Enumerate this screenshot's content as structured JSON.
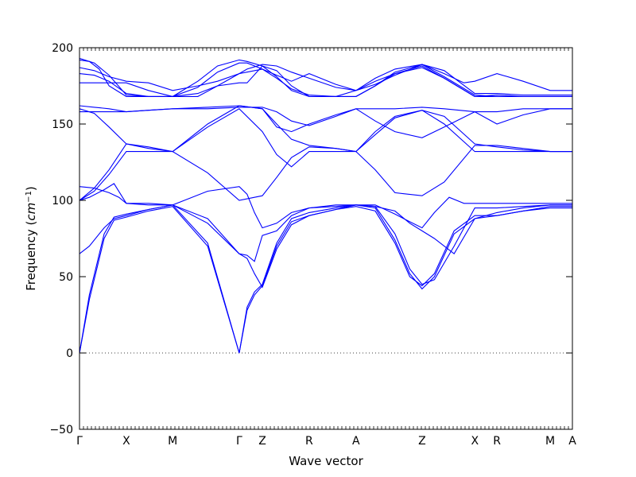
{
  "chart_data": {
    "type": "line",
    "xlabel": "Wave vector",
    "ylabel": "Frequency",
    "ylabel_unit": "cm",
    "ylabel_unit_exp": "−1",
    "ylim": [
      -50,
      200
    ],
    "yticks": [
      -50,
      0,
      50,
      100,
      150,
      200
    ],
    "xlim": [
      0,
      1
    ],
    "grid": false,
    "zero_line": "dotted",
    "high_symmetry_points": [
      {
        "label": "Γ",
        "x": 0.0
      },
      {
        "label": "X",
        "x": 0.095
      },
      {
        "label": "M",
        "x": 0.189
      },
      {
        "label": "Γ",
        "x": 0.324
      },
      {
        "label": "Z",
        "x": 0.371
      },
      {
        "label": "R",
        "x": 0.466
      },
      {
        "label": "A",
        "x": 0.561
      },
      {
        "label": "Z",
        "x": 0.695
      },
      {
        "label": "X",
        "x": 0.802
      },
      {
        "label": "R",
        "x": 0.847
      },
      {
        "label": "M",
        "x": 0.955
      },
      {
        "label": "A",
        "x": 1.0
      }
    ],
    "series": [
      {
        "x": [
          0,
          0.02,
          0.05,
          0.07,
          0.095,
          0.14,
          0.189,
          0.26,
          0.324,
          0.34,
          0.355,
          0.371,
          0.4,
          0.43,
          0.466,
          0.52,
          0.561,
          0.6,
          0.64,
          0.67,
          0.695,
          0.72,
          0.76,
          0.802,
          0.847,
          0.9,
          0.955,
          1.0
        ],
        "y": [
          0,
          35,
          75,
          87,
          89,
          93,
          96,
          70,
          0,
          28,
          38,
          44,
          70,
          86,
          90,
          94,
          96,
          93,
          72,
          50,
          44,
          52,
          80,
          90,
          90,
          93,
          96,
          96
        ]
      },
      {
        "x": [
          0,
          0.02,
          0.05,
          0.07,
          0.095,
          0.14,
          0.189,
          0.26,
          0.324,
          0.34,
          0.355,
          0.371,
          0.4,
          0.43,
          0.466,
          0.52,
          0.561,
          0.6,
          0.64,
          0.67,
          0.695,
          0.72,
          0.76,
          0.802,
          0.847,
          0.9,
          0.955,
          1.0
        ],
        "y": [
          0,
          38,
          78,
          89,
          91,
          94,
          97,
          72,
          0,
          30,
          40,
          45,
          72,
          88,
          92,
          95,
          97,
          95,
          74,
          52,
          42,
          50,
          78,
          88,
          92,
          95,
          97,
          97
        ]
      },
      {
        "x": [
          0,
          0.02,
          0.05,
          0.07,
          0.095,
          0.14,
          0.189,
          0.26,
          0.324,
          0.34,
          0.355,
          0.371,
          0.4,
          0.43,
          0.466,
          0.52,
          0.561,
          0.6,
          0.64,
          0.67,
          0.695,
          0.72,
          0.76,
          0.802,
          0.847,
          0.9,
          0.955,
          1.0
        ],
        "y": [
          65,
          70,
          82,
          88,
          90,
          94,
          97,
          88,
          65,
          62,
          52,
          43,
          68,
          84,
          90,
          94,
          97,
          96,
          78,
          55,
          45,
          48,
          70,
          95,
          95,
          96,
          97,
          97
        ]
      },
      {
        "x": [
          0,
          0.03,
          0.06,
          0.08,
          0.095,
          0.14,
          0.189,
          0.26,
          0.324,
          0.34,
          0.355,
          0.371,
          0.4,
          0.43,
          0.466,
          0.52,
          0.561,
          0.6,
          0.64,
          0.67,
          0.695,
          0.72,
          0.75,
          0.78,
          0.802,
          0.847,
          0.9,
          0.955,
          1.0
        ],
        "y": [
          109,
          108,
          105,
          102,
          98,
          98,
          97,
          85,
          65,
          64,
          60,
          77,
          80,
          90,
          95,
          97,
          97,
          97,
          91,
          86,
          82,
          92,
          102,
          98,
          98,
          98,
          98,
          98,
          98
        ]
      },
      {
        "x": [
          0,
          0.02,
          0.05,
          0.07,
          0.095,
          0.14,
          0.189,
          0.26,
          0.324,
          0.34,
          0.355,
          0.371,
          0.4,
          0.43,
          0.466,
          0.52,
          0.561,
          0.6,
          0.64,
          0.67,
          0.695,
          0.72,
          0.76,
          0.802,
          0.847,
          0.9,
          0.955,
          1.0
        ],
        "y": [
          100,
          102,
          107,
          111,
          98,
          97,
          97,
          106,
          109,
          104,
          92,
          82,
          85,
          92,
          95,
          96,
          97,
          96,
          93,
          85,
          80,
          75,
          65,
          88,
          90,
          93,
          95,
          95
        ]
      },
      {
        "x": [
          0,
          0.03,
          0.06,
          0.095,
          0.14,
          0.189,
          0.26,
          0.324,
          0.371,
          0.4,
          0.43,
          0.466,
          0.52,
          0.561,
          0.6,
          0.64,
          0.695,
          0.74,
          0.802,
          0.847,
          0.9,
          0.955,
          1.0
        ],
        "y": [
          100,
          108,
          120,
          137,
          135,
          132,
          118,
          100,
          103,
          115,
          128,
          135,
          134,
          132,
          120,
          105,
          103,
          112,
          136,
          136,
          134,
          132,
          132
        ]
      },
      {
        "x": [
          0,
          0.03,
          0.06,
          0.095,
          0.14,
          0.189,
          0.26,
          0.324,
          0.371,
          0.4,
          0.43,
          0.466,
          0.52,
          0.561,
          0.6,
          0.64,
          0.695,
          0.74,
          0.802,
          0.847,
          0.9,
          0.955,
          1.0
        ],
        "y": [
          100,
          106,
          117,
          132,
          132,
          132,
          148,
          160,
          145,
          130,
          122,
          132,
          132,
          132,
          145,
          155,
          159,
          150,
          132,
          132,
          132,
          132,
          132
        ]
      },
      {
        "x": [
          0,
          0.03,
          0.06,
          0.095,
          0.14,
          0.189,
          0.26,
          0.324,
          0.371,
          0.4,
          0.43,
          0.466,
          0.52,
          0.561,
          0.6,
          0.64,
          0.695,
          0.74,
          0.802,
          0.847,
          0.9,
          0.955,
          1.0
        ],
        "y": [
          160,
          157,
          148,
          137,
          134,
          132,
          150,
          162,
          160,
          150,
          140,
          136,
          134,
          132,
          143,
          154,
          159,
          155,
          137,
          135,
          133,
          132,
          132
        ]
      },
      {
        "x": [
          0,
          0.03,
          0.06,
          0.095,
          0.14,
          0.189,
          0.26,
          0.324,
          0.371,
          0.4,
          0.43,
          0.466,
          0.52,
          0.561,
          0.6,
          0.64,
          0.695,
          0.74,
          0.802,
          0.847,
          0.9,
          0.955,
          1.0
        ],
        "y": [
          162,
          161,
          160,
          158,
          159,
          160,
          161,
          162,
          160,
          148,
          145,
          150,
          156,
          160,
          152,
          145,
          141,
          148,
          158,
          150,
          156,
          160,
          160
        ]
      },
      {
        "x": [
          0,
          0.03,
          0.06,
          0.095,
          0.14,
          0.189,
          0.26,
          0.324,
          0.371,
          0.4,
          0.43,
          0.466,
          0.52,
          0.561,
          0.6,
          0.64,
          0.695,
          0.74,
          0.802,
          0.847,
          0.9,
          0.955,
          1.0
        ],
        "y": [
          158,
          158,
          158,
          158,
          159,
          160,
          160,
          161,
          161,
          158,
          152,
          149,
          155,
          160,
          160,
          160,
          161,
          160,
          158,
          158,
          160,
          160,
          160
        ]
      },
      {
        "x": [
          0,
          0.03,
          0.06,
          0.095,
          0.14,
          0.189,
          0.24,
          0.28,
          0.324,
          0.34,
          0.371,
          0.4,
          0.43,
          0.466,
          0.52,
          0.561,
          0.6,
          0.64,
          0.695,
          0.74,
          0.802,
          0.847,
          0.9,
          0.955,
          1.0
        ],
        "y": [
          177,
          177,
          177,
          177,
          172,
          168,
          168,
          175,
          177,
          177,
          188,
          185,
          175,
          168,
          168,
          168,
          175,
          183,
          188,
          180,
          168,
          169,
          168,
          168,
          168
        ]
      },
      {
        "x": [
          0,
          0.03,
          0.06,
          0.095,
          0.14,
          0.189,
          0.24,
          0.28,
          0.324,
          0.34,
          0.371,
          0.4,
          0.43,
          0.466,
          0.52,
          0.561,
          0.6,
          0.64,
          0.695,
          0.74,
          0.802,
          0.847,
          0.9,
          0.955,
          1.0
        ],
        "y": [
          183,
          182,
          178,
          170,
          168,
          168,
          170,
          175,
          183,
          186,
          189,
          188,
          184,
          180,
          174,
          172,
          176,
          182,
          189,
          185,
          170,
          170,
          169,
          169,
          169
        ]
      },
      {
        "x": [
          0,
          0.03,
          0.06,
          0.095,
          0.14,
          0.189,
          0.24,
          0.28,
          0.324,
          0.34,
          0.371,
          0.4,
          0.43,
          0.466,
          0.52,
          0.561,
          0.6,
          0.64,
          0.695,
          0.74,
          0.802,
          0.847,
          0.9,
          0.955,
          1.0
        ],
        "y": [
          187,
          185,
          181,
          178,
          177,
          172,
          175,
          178,
          183,
          184,
          186,
          182,
          178,
          183,
          176,
          172,
          178,
          183,
          187,
          180,
          168,
          168,
          168,
          168,
          168
        ]
      },
      {
        "x": [
          0,
          0.02,
          0.04,
          0.06,
          0.095,
          0.14,
          0.189,
          0.24,
          0.28,
          0.324,
          0.34,
          0.371,
          0.4,
          0.43,
          0.466,
          0.52,
          0.561,
          0.6,
          0.64,
          0.695,
          0.74,
          0.78,
          0.802,
          0.847,
          0.9,
          0.955,
          1.0
        ],
        "y": [
          192,
          191,
          186,
          175,
          168,
          168,
          168,
          178,
          188,
          192,
          191,
          188,
          181,
          172,
          168,
          168,
          168,
          175,
          184,
          189,
          183,
          177,
          178,
          183,
          178,
          172,
          172
        ]
      },
      {
        "x": [
          0,
          0.03,
          0.06,
          0.095,
          0.14,
          0.189,
          0.24,
          0.28,
          0.324,
          0.34,
          0.371,
          0.4,
          0.43,
          0.466,
          0.52,
          0.561,
          0.6,
          0.64,
          0.695,
          0.74,
          0.802,
          0.847,
          0.9,
          0.955,
          1.0
        ],
        "y": [
          193,
          190,
          182,
          169,
          168,
          168,
          174,
          184,
          190,
          190,
          186,
          180,
          173,
          169,
          168,
          172,
          180,
          186,
          189,
          181,
          169,
          168,
          168,
          168,
          168
        ]
      }
    ]
  }
}
